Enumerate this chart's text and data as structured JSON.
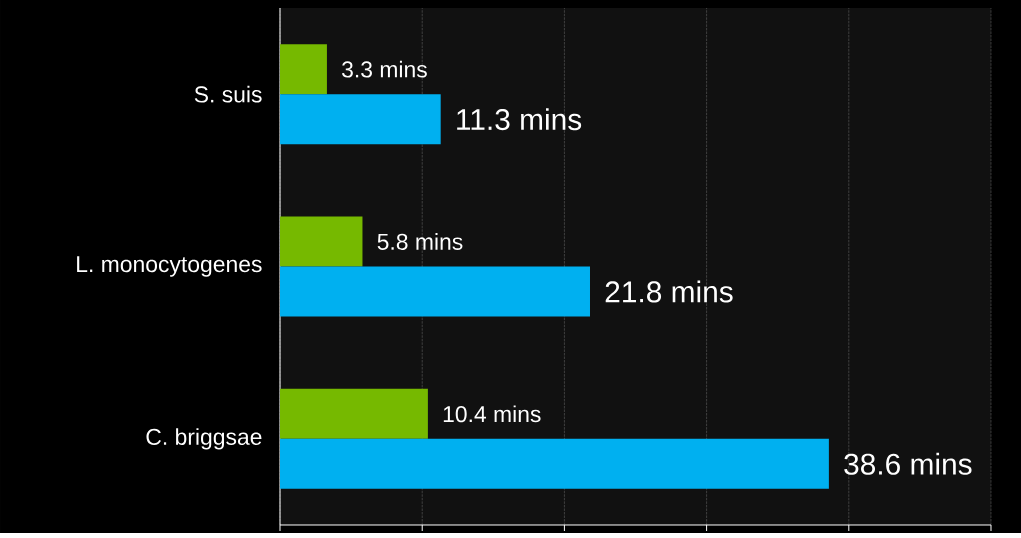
{
  "chart_data": {
    "type": "bar",
    "orientation": "horizontal",
    "categories": [
      "S. suis",
      "L. monocytogenes",
      "C. briggsae"
    ],
    "series": [
      {
        "color": "#76b900",
        "values": [
          3.3,
          5.8,
          10.4
        ],
        "value_labels": [
          "3.3 mins",
          "5.8 mins",
          "10.4 mins"
        ]
      },
      {
        "color": "#00b0f0",
        "values": [
          11.3,
          21.8,
          38.6
        ],
        "value_labels": [
          "11.3 mins",
          "21.8 mins",
          "38.6 mins"
        ]
      }
    ],
    "xlim": [
      0,
      50
    ],
    "xticks": [
      {
        "value": 0,
        "label": null
      },
      {
        "value": 10,
        "label": null
      },
      {
        "value": 20,
        "label": null
      },
      {
        "value": 30,
        "label": null
      },
      {
        "value": 40,
        "label": null
      },
      {
        "value": 50,
        "label": null
      }
    ],
    "grid": "x",
    "tick_labels": "y"
  }
}
